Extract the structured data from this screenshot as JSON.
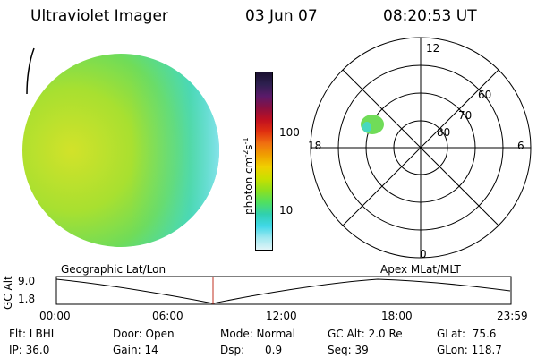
{
  "header": {
    "instrument": "Ultraviolet Imager",
    "date": "03 Jun 07",
    "time": "08:20:53 UT"
  },
  "colorbar": {
    "label_main": "photon cm",
    "label_sup1": "-2",
    "label_mid": "s",
    "label_sup2": "-1",
    "tick_high": "100",
    "tick_low": "10",
    "colors": [
      "#1a1030",
      "#2e2050",
      "#5a1a6a",
      "#8a1040",
      "#c01020",
      "#e03010",
      "#f07010",
      "#f0a000",
      "#f0d000",
      "#c8e000",
      "#8ce020",
      "#50e060",
      "#30d0b0",
      "#40d8e8",
      "#a0e8f0",
      "#e0f4f8"
    ]
  },
  "polar_plot": {
    "labels_mlt": {
      "top": "12",
      "left": "18",
      "right": "6",
      "bottom": "0"
    },
    "labels_lat": [
      "60",
      "70",
      "80"
    ]
  },
  "timeline": {
    "axis_title": "GC Alt",
    "y_ticks": [
      "9.0",
      "1.8"
    ],
    "left_caption": "Geographic Lat/Lon",
    "right_caption": "Apex MLat/MLT",
    "x_ticks": [
      "00:00",
      "06:00",
      "12:00",
      "18:00",
      "23:59"
    ]
  },
  "status": {
    "flt": "Flt: LBHL",
    "door": "Door: Open",
    "mode": "Mode: Normal",
    "gc_alt": "GC Alt: 2.0 Re",
    "glat": "GLat:  75.6",
    "ip": "IP: 36.0",
    "gain": "Gain: 14",
    "dsp": "Dsp:      0.9",
    "seq": "Seq: 39",
    "glon": "GLon: 118.7"
  }
}
